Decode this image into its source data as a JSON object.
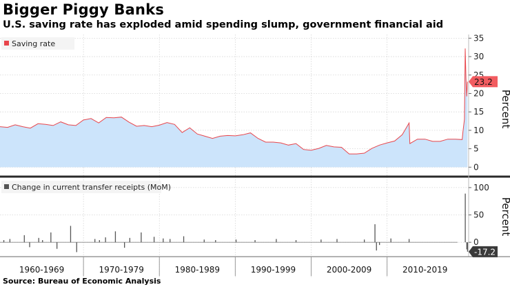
{
  "header": {
    "title": "Bigger Piggy Banks",
    "subtitle": "U.S. saving rate has exploded amid spending slump, government financial aid"
  },
  "footer": {
    "source": "Source: Bureau of Economic Analysis"
  },
  "colors": {
    "saving_line": "#e8454b",
    "saving_fill": "#cce4fb",
    "transfer_bar": "#555555",
    "callout_red": "#f25c60",
    "callout_gray": "#3a3a3a",
    "grid": "#d5d5d5",
    "divider": "#2a2a2a"
  },
  "chart_data": [
    {
      "type": "area",
      "legend": "Saving rate",
      "ylabel": "Percent",
      "ylim": [
        -2,
        36
      ],
      "yticks": [
        0,
        5,
        10,
        15,
        20,
        25,
        30,
        35
      ],
      "callout": {
        "label": "23.2",
        "value": 23.2
      },
      "xlim": [
        1959.0,
        2020.75
      ],
      "x_decade_labels": [
        "1960-1969",
        "1970-1979",
        "1980-1989",
        "1990-1999",
        "2000-2009",
        "2010-2019"
      ],
      "x_decade_starts": [
        1959.0,
        1970.0,
        1980.0,
        1990.0,
        2000.0,
        2010.0
      ],
      "x_decade_ends": [
        1970.0,
        1980.0,
        1990.0,
        2000.0,
        2010.0,
        2020.0
      ],
      "series": {
        "x": [
          1959.0,
          1960.0,
          1961.0,
          1962.0,
          1963.0,
          1964.0,
          1965.0,
          1966.0,
          1967.0,
          1968.0,
          1969.0,
          1970.0,
          1971.0,
          1972.0,
          1973.0,
          1974.0,
          1975.0,
          1976.0,
          1977.0,
          1978.0,
          1979.0,
          1980.0,
          1981.0,
          1982.0,
          1983.0,
          1984.0,
          1985.0,
          1986.0,
          1987.0,
          1988.0,
          1989.0,
          1990.0,
          1991.0,
          1992.0,
          1993.0,
          1994.0,
          1995.0,
          1996.0,
          1997.0,
          1998.0,
          1999.0,
          2000.0,
          2001.0,
          2002.0,
          2003.0,
          2004.0,
          2005.0,
          2006.0,
          2007.0,
          2008.0,
          2009.0,
          2010.0,
          2011.0,
          2012.0,
          2012.9,
          2013.0,
          2014.0,
          2015.0,
          2016.0,
          2017.0,
          2018.0,
          2019.0,
          2019.9,
          2020.0,
          2020.2,
          2020.3,
          2020.4,
          2020.5,
          2020.6
        ],
        "y": [
          11.0,
          10.8,
          11.5,
          11.0,
          10.6,
          11.8,
          11.6,
          11.3,
          12.3,
          11.5,
          11.3,
          12.8,
          13.2,
          12.0,
          13.5,
          13.4,
          13.6,
          12.2,
          11.1,
          11.3,
          11.0,
          11.4,
          12.1,
          11.6,
          9.4,
          10.7,
          9.0,
          8.4,
          7.8,
          8.4,
          8.6,
          8.5,
          8.8,
          9.3,
          7.8,
          6.8,
          6.8,
          6.6,
          6.0,
          6.4,
          4.8,
          4.6,
          5.1,
          5.9,
          5.5,
          5.4,
          3.6,
          3.6,
          3.8,
          5.1,
          6.0,
          6.6,
          7.1,
          8.8,
          12.0,
          6.4,
          7.6,
          7.6,
          7.0,
          7.0,
          7.6,
          7.6,
          7.5,
          9.6,
          13.0,
          32.2,
          24.2,
          19.2,
          23.2
        ]
      }
    },
    {
      "type": "bar",
      "legend": "Change in current transfer receipts (MoM)",
      "ylabel": "Percent",
      "ylim": [
        -25,
        115
      ],
      "yticks": [
        0,
        50,
        100
      ],
      "callout": {
        "label": "-17.2",
        "value": -17.2
      },
      "xlim": [
        1959.0,
        2020.75
      ],
      "series": {
        "x": [
          1959.5,
          1960.3,
          1962.2,
          1962.9,
          1964.1,
          1964.6,
          1965.7,
          1966.5,
          1968.3,
          1969.1,
          1971.5,
          1972.1,
          1972.9,
          1974.2,
          1975.4,
          1976.1,
          1977.6,
          1979.3,
          1980.5,
          1981.4,
          1983.2,
          1985.9,
          1987.4,
          1990.1,
          1992.6,
          1995.4,
          1998.0,
          2001.3,
          2003.4,
          2007.0,
          2008.4,
          2008.6,
          2009.0,
          2010.5,
          2012.9,
          2020.3,
          2020.5,
          2020.6
        ],
        "y": [
          4,
          6,
          13,
          -9,
          8,
          4,
          18,
          -12,
          30,
          -18,
          6,
          4,
          9,
          20,
          -10,
          8,
          18,
          10,
          7,
          6,
          11,
          5,
          4,
          5,
          4,
          6,
          4,
          5,
          6,
          5,
          33,
          -15,
          -5,
          7,
          6,
          89,
          -13,
          -17.2
        ]
      }
    }
  ]
}
